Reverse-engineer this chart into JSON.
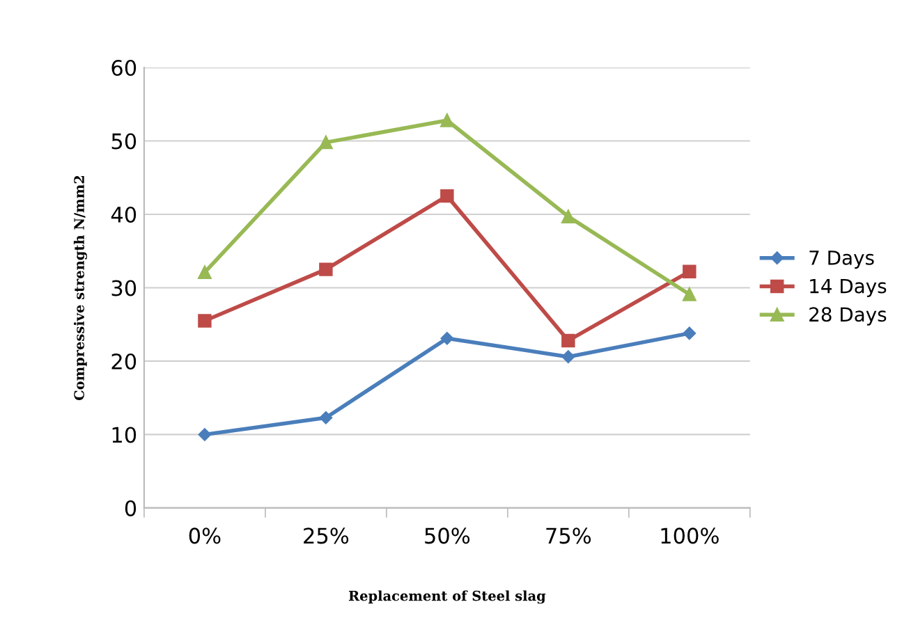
{
  "chart_data": {
    "type": "line",
    "xlabel": "Replacement of Steel slag",
    "ylabel": "Compressive strength N/mm2",
    "categories": [
      "0%",
      "25%",
      "50%",
      "75%",
      "100%"
    ],
    "series": [
      {
        "name": "7 Days",
        "color": "#4a7ebb",
        "marker": "diamond",
        "values": [
          10,
          12.3,
          23.1,
          20.6,
          23.8
        ]
      },
      {
        "name": "14 Days",
        "color": "#be4b48",
        "marker": "square",
        "values": [
          25.5,
          32.5,
          42.5,
          22.8,
          32.2
        ]
      },
      {
        "name": "28 Days",
        "color": "#98b954",
        "marker": "triangle",
        "values": [
          32.1,
          49.8,
          52.8,
          39.7,
          29.1
        ]
      }
    ],
    "ylim": [
      0,
      60
    ],
    "yticks": [
      0,
      10,
      20,
      30,
      40,
      50,
      60
    ],
    "grid": "y",
    "legend": "right"
  }
}
